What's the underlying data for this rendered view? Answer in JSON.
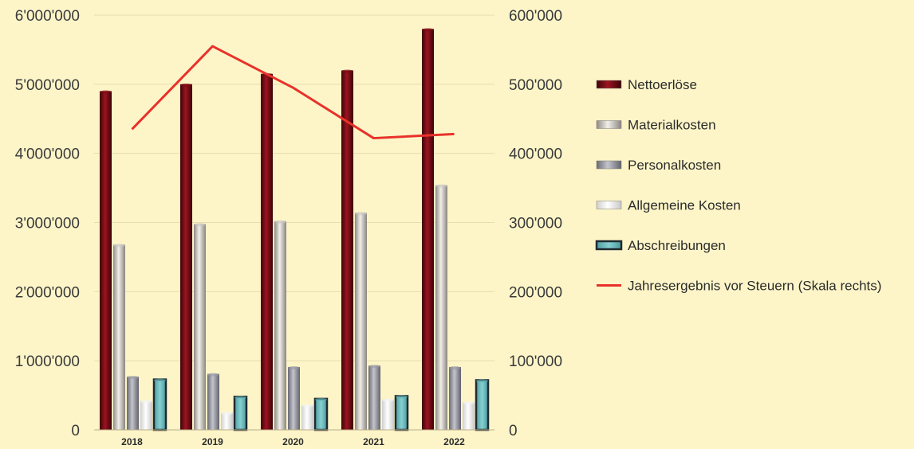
{
  "chart_data": {
    "type": "bar",
    "categories": [
      "2018",
      "2019",
      "2020",
      "2021",
      "2022"
    ],
    "series": [
      {
        "name": "Nettoerlöse",
        "axis": "left",
        "color": "#7a0a12",
        "values": [
          4900000,
          5000000,
          5150000,
          5200000,
          5800000
        ]
      },
      {
        "name": "Materialkosten",
        "axis": "left",
        "color": "#c9c5bf",
        "values": [
          2680000,
          2980000,
          3020000,
          3140000,
          3540000
        ]
      },
      {
        "name": "Personalkosten",
        "axis": "left",
        "color": "#9a9aa2",
        "values": [
          770000,
          810000,
          910000,
          930000,
          910000
        ]
      },
      {
        "name": "Allgemeine Kosten",
        "axis": "left",
        "color": "#f4f4f4",
        "values": [
          420000,
          250000,
          360000,
          440000,
          400000
        ]
      },
      {
        "name": "Abschreibungen",
        "axis": "left",
        "color": "#67b9bb",
        "values": [
          730000,
          480000,
          450000,
          490000,
          720000
        ]
      },
      {
        "name": "Jahresergebnis vor Steuern (Skala rechts)",
        "axis": "right",
        "type": "line",
        "color": "#e8322b",
        "values": [
          435000,
          555000,
          495000,
          422000,
          428000
        ]
      }
    ],
    "y_left": {
      "ylim": [
        0,
        6000000
      ],
      "ticks": [
        "0",
        "1'000'000",
        "2'000'000",
        "3'000'000",
        "4'000'000",
        "5'000'000",
        "6'000'000"
      ]
    },
    "y_right": {
      "ylim": [
        0,
        600000
      ],
      "ticks": [
        "0",
        "100'000",
        "200'000",
        "300'000",
        "400'000",
        "500'000",
        "600'000"
      ]
    },
    "grid": true,
    "legend_position": "right",
    "background_color": "#fdf5c8"
  }
}
